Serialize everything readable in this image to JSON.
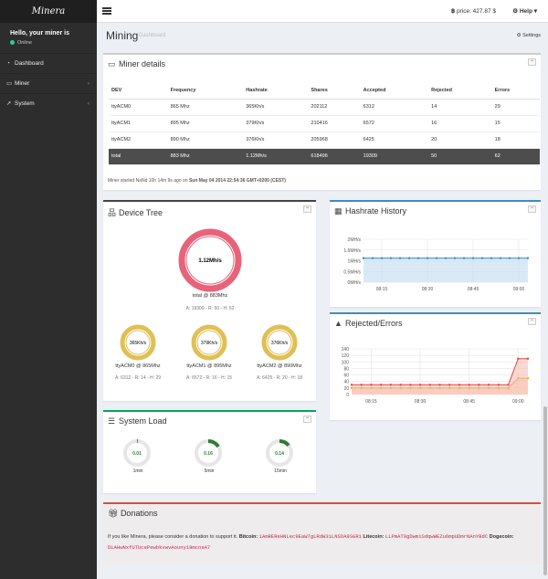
{
  "sidebar": {
    "logo": "Minera",
    "greeting": "Hello, your miner is",
    "status": "Online",
    "items": [
      {
        "label": "Dashboard",
        "icon": "dashboard-icon"
      },
      {
        "label": "Miner",
        "icon": "desktop-icon"
      },
      {
        "label": "System",
        "icon": "rocket-icon"
      }
    ]
  },
  "topbar": {
    "price": "price: 427.87 $",
    "help": "Help"
  },
  "page": {
    "title": "Mining",
    "subtitle": "Dashboard",
    "settings": "Settings"
  },
  "miner_details": {
    "title": "Miner details",
    "columns": [
      "DEV",
      "Frequency",
      "Hashrate",
      "Shares",
      "Accepted",
      "Rejected",
      "Errors"
    ],
    "rows": [
      [
        "ttyACM0",
        "865 Mhz",
        "365Kh/s",
        "202112",
        "6312",
        "14",
        "29"
      ],
      [
        "ttyACM1",
        "895 Mhz",
        "379Kh/s",
        "210416",
        "6572",
        "16",
        "15"
      ],
      [
        "ttyACM2",
        "890 Mhz",
        "376Kh/s",
        "205968",
        "6425",
        "20",
        "18"
      ],
      [
        "total",
        "883 Mhz",
        "1.12Mh/s",
        "618496",
        "19309",
        "50",
        "62"
      ]
    ],
    "started_prefix": "Miner started",
    "started_rel": "NaNd 10h 14m 9s ago on",
    "started_date": "Sun May 04 2014 22:54:36 GMT+0200 (CEST)"
  },
  "device_tree": {
    "title": "Device Tree",
    "total": {
      "value": "1.12Mh/s",
      "label": "total @ 883Mhz",
      "stats": "A: 19309 - R: 50 - H: 62"
    },
    "devices": [
      {
        "value": "365Kh/s",
        "label": "ttyACM0 @ 865Mhz",
        "stats": "A: 6312 - R: 14 - H: 29"
      },
      {
        "value": "379Kh/s",
        "label": "ttyACM1 @ 895Mhz",
        "stats": "A: 6572 - R: 16 - H: 15"
      },
      {
        "value": "376Kh/s",
        "label": "ttyACM2 @ 890Mhz",
        "stats": "A: 6425 - R: 20 - H: 18"
      }
    ]
  },
  "system_load": {
    "title": "System Load",
    "gauges": [
      {
        "value": "0.01",
        "label": "1min",
        "fraction": 0.01
      },
      {
        "value": "0.16",
        "label": "5min",
        "fraction": 0.16
      },
      {
        "value": "0.14",
        "label": "15min",
        "fraction": 0.14
      }
    ]
  },
  "donations": {
    "title": "Donations",
    "intro": "If you like Minera, please consider a donation to support it.",
    "bitcoin_label": "Bitcoin:",
    "bitcoin": "1AmREReHNLec9EaW7gLRdW31LNSDA9SGR1",
    "litecoin_label": "Litecoin:",
    "litecoin": "LLPmAT9gDwmiSdqwWEZu6mpUDmrNAnYBdC",
    "dogecoin_label": "Dogecoin:",
    "dogecoin": "DLAHwNxfUTUcePewbkvwvAouny19mcosA7"
  },
  "colors": {
    "hashrate": "#3c8dbc",
    "hashrate_fill": "#b9d9ee",
    "rejected": "#f39c12",
    "errors": "#dd4b39",
    "gauge_green": "#2e7d32",
    "device_yellow": "#dfc054",
    "total_red": "#e8637a"
  },
  "chart_data": [
    {
      "type": "area",
      "title": "Hashrate History",
      "x": [
        "08:09",
        "08:12",
        "08:15",
        "08:18",
        "08:21",
        "08:24",
        "08:27",
        "08:30",
        "08:33",
        "08:36",
        "08:39",
        "08:42",
        "08:45",
        "08:48",
        "08:51",
        "08:54",
        "08:57",
        "09:00",
        "09:03"
      ],
      "series": [
        {
          "values": [
            1.12,
            1.12,
            1.12,
            1.12,
            1.12,
            1.12,
            1.12,
            1.12,
            1.12,
            1.12,
            1.12,
            1.12,
            1.12,
            1.12,
            1.12,
            1.12,
            1.12,
            1.12,
            1.12
          ]
        }
      ],
      "x_ticks": [
        "08:15",
        "08:30",
        "08:45",
        "09:00"
      ],
      "y_ticks": [
        "0MH/s",
        "0.5MH/s",
        "1MH/s",
        "1.5MH/s",
        "2MH/s"
      ],
      "ylim": [
        0,
        2
      ],
      "grid": true
    },
    {
      "type": "area",
      "title": "Rejected/Errors",
      "x": [
        "08:09",
        "08:12",
        "08:15",
        "08:18",
        "08:21",
        "08:24",
        "08:27",
        "08:30",
        "08:33",
        "08:36",
        "08:39",
        "08:42",
        "08:45",
        "08:48",
        "08:51",
        "08:54",
        "08:57",
        "09:00",
        "09:03"
      ],
      "series": [
        {
          "values": [
            20,
            20,
            20,
            20,
            20,
            20,
            20,
            20,
            20,
            20,
            20,
            20,
            20,
            20,
            20,
            20,
            20,
            50,
            50
          ]
        },
        {
          "values": [
            30,
            30,
            30,
            30,
            30,
            30,
            30,
            30,
            30,
            30,
            30,
            30,
            30,
            30,
            30,
            30,
            30,
            110,
            110
          ]
        }
      ],
      "x_ticks": [
        "08:15",
        "08:30",
        "08:45",
        "09:00"
      ],
      "y_ticks": [
        "0",
        "20",
        "40",
        "60",
        "80",
        "100",
        "120",
        "140"
      ],
      "ylim": [
        0,
        140
      ],
      "grid": true
    }
  ]
}
